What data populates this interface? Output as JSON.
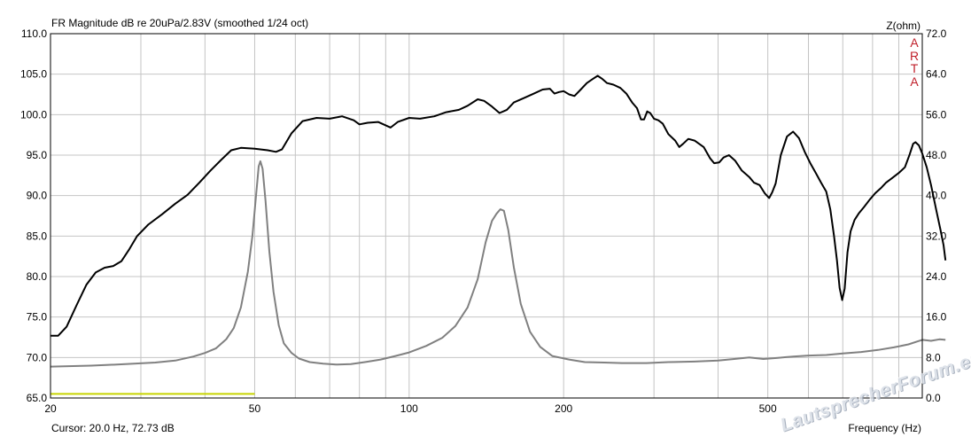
{
  "chart_data": {
    "type": "line",
    "title": "FR Magnitude dB re 20uPa/2.83V (smoothed 1/24 oct)",
    "xlabel": "Frequency (Hz)",
    "ylabel_right": "Z(ohm)",
    "x_scale": "log",
    "xlim": [
      20,
      1000
    ],
    "ylim": [
      65,
      110
    ],
    "y2lim": [
      0,
      72
    ],
    "grid": true,
    "x_ticks": [
      "20",
      "50",
      "100",
      "200",
      "500"
    ],
    "y_ticks": [
      "110.0",
      "105.0",
      "100.0",
      "95.0",
      "90.0",
      "85.0",
      "80.0",
      "75.0",
      "70.0",
      "65.0"
    ],
    "y2_ticks": [
      "72.0",
      "64.0",
      "56.0",
      "48.0",
      "40.0",
      "32.0",
      "24.0",
      "16.0",
      "8.0",
      "0.0"
    ],
    "series": [
      {
        "axis": "left",
        "color": "#000000",
        "points": [
          [
            20,
            72.7
          ],
          [
            20.7,
            72.7
          ],
          [
            21.5,
            73.8
          ],
          [
            22.5,
            76.5
          ],
          [
            23.5,
            79.0
          ],
          [
            24.5,
            80.5
          ],
          [
            25.5,
            81.1
          ],
          [
            26.5,
            81.3
          ],
          [
            27.5,
            81.9
          ],
          [
            28.5,
            83.4
          ],
          [
            29.5,
            85.0
          ],
          [
            31,
            86.4
          ],
          [
            33,
            87.7
          ],
          [
            35,
            89.0
          ],
          [
            37,
            90.1
          ],
          [
            39,
            91.6
          ],
          [
            41,
            93.1
          ],
          [
            43,
            94.4
          ],
          [
            45,
            95.6
          ],
          [
            47,
            95.9
          ],
          [
            50,
            95.8
          ],
          [
            53,
            95.6
          ],
          [
            55,
            95.4
          ],
          [
            56.5,
            95.7
          ],
          [
            59,
            97.7
          ],
          [
            62,
            99.2
          ],
          [
            66,
            99.6
          ],
          [
            70,
            99.5
          ],
          [
            74,
            99.8
          ],
          [
            78,
            99.3
          ],
          [
            80,
            98.8
          ],
          [
            83,
            99.0
          ],
          [
            87,
            99.1
          ],
          [
            92,
            98.4
          ],
          [
            95,
            99.1
          ],
          [
            100,
            99.6
          ],
          [
            105,
            99.5
          ],
          [
            112,
            99.8
          ],
          [
            118,
            100.3
          ],
          [
            125,
            100.6
          ],
          [
            130,
            101.1
          ],
          [
            136,
            101.9
          ],
          [
            140,
            101.7
          ],
          [
            145,
            101.0
          ],
          [
            150,
            100.2
          ],
          [
            155,
            100.6
          ],
          [
            160,
            101.5
          ],
          [
            168,
            102.1
          ],
          [
            175,
            102.6
          ],
          [
            182,
            103.1
          ],
          [
            188,
            103.2
          ],
          [
            192,
            102.6
          ],
          [
            196,
            102.8
          ],
          [
            200,
            102.9
          ],
          [
            205,
            102.5
          ],
          [
            210,
            102.3
          ],
          [
            216,
            103.1
          ],
          [
            222,
            103.9
          ],
          [
            228,
            104.4
          ],
          [
            233,
            104.8
          ],
          [
            238,
            104.4
          ],
          [
            243,
            103.9
          ],
          [
            250,
            103.7
          ],
          [
            258,
            103.3
          ],
          [
            265,
            102.6
          ],
          [
            272,
            101.5
          ],
          [
            278,
            100.8
          ],
          [
            283,
            99.4
          ],
          [
            287,
            99.4
          ],
          [
            291,
            100.4
          ],
          [
            295,
            100.2
          ],
          [
            300,
            99.5
          ],
          [
            306,
            99.3
          ],
          [
            312,
            98.9
          ],
          [
            320,
            97.6
          ],
          [
            330,
            96.8
          ],
          [
            336,
            96.0
          ],
          [
            342,
            96.4
          ],
          [
            350,
            97.0
          ],
          [
            360,
            96.8
          ],
          [
            375,
            96.0
          ],
          [
            386,
            94.6
          ],
          [
            393,
            94.0
          ],
          [
            402,
            94.1
          ],
          [
            410,
            94.7
          ],
          [
            420,
            95.0
          ],
          [
            432,
            94.3
          ],
          [
            445,
            93.1
          ],
          [
            460,
            92.3
          ],
          [
            470,
            91.6
          ],
          [
            482,
            91.3
          ],
          [
            493,
            90.3
          ],
          [
            503,
            89.7
          ],
          [
            510,
            90.4
          ],
          [
            518,
            91.5
          ],
          [
            530,
            95.0
          ],
          [
            545,
            97.3
          ],
          [
            560,
            97.9
          ],
          [
            575,
            97.1
          ],
          [
            590,
            95.4
          ],
          [
            605,
            94.0
          ],
          [
            620,
            92.8
          ],
          [
            635,
            91.6
          ],
          [
            650,
            90.5
          ],
          [
            662,
            88.3
          ],
          [
            673,
            85.0
          ],
          [
            682,
            82.0
          ],
          [
            690,
            78.6
          ],
          [
            698,
            77.1
          ],
          [
            706,
            78.5
          ],
          [
            715,
            83.0
          ],
          [
            725,
            85.6
          ],
          [
            738,
            87.0
          ],
          [
            752,
            87.8
          ],
          [
            770,
            88.6
          ],
          [
            790,
            89.5
          ],
          [
            810,
            90.3
          ],
          [
            830,
            90.9
          ],
          [
            850,
            91.6
          ],
          [
            875,
            92.2
          ],
          [
            900,
            92.8
          ],
          [
            925,
            93.5
          ],
          [
            945,
            95.1
          ],
          [
            960,
            96.4
          ],
          [
            970,
            96.6
          ],
          [
            985,
            96.2
          ],
          [
            1000,
            95.2
          ],
          [
            1020,
            93.5
          ],
          [
            1040,
            91.3
          ],
          [
            1065,
            88.2
          ],
          [
            1085,
            85.8
          ],
          [
            1100,
            83.9
          ],
          [
            1110,
            82.0
          ]
        ]
      },
      {
        "axis": "right",
        "color": "#808080",
        "points": [
          [
            20,
            6.2
          ],
          [
            24,
            6.4
          ],
          [
            28,
            6.7
          ],
          [
            32,
            7.0
          ],
          [
            35,
            7.4
          ],
          [
            38,
            8.2
          ],
          [
            40,
            8.9
          ],
          [
            42,
            9.8
          ],
          [
            44,
            11.6
          ],
          [
            45.5,
            13.8
          ],
          [
            47,
            17.9
          ],
          [
            48.5,
            25.0
          ],
          [
            49.5,
            32.0
          ],
          [
            50.3,
            40.0
          ],
          [
            50.9,
            45.8
          ],
          [
            51.3,
            46.8
          ],
          [
            51.8,
            45.3
          ],
          [
            52.5,
            39.0
          ],
          [
            53.4,
            29.0
          ],
          [
            54.4,
            21.0
          ],
          [
            55.7,
            14.4
          ],
          [
            57,
            10.8
          ],
          [
            59,
            8.9
          ],
          [
            61,
            7.8
          ],
          [
            64,
            7.1
          ],
          [
            68,
            6.8
          ],
          [
            72,
            6.6
          ],
          [
            77,
            6.7
          ],
          [
            82,
            7.1
          ],
          [
            88,
            7.6
          ],
          [
            94,
            8.3
          ],
          [
            100,
            9.0
          ],
          [
            108,
            10.3
          ],
          [
            116,
            11.9
          ],
          [
            123,
            14.2
          ],
          [
            130,
            17.9
          ],
          [
            136,
            23.5
          ],
          [
            141,
            30.8
          ],
          [
            145,
            35.0
          ],
          [
            148,
            36.4
          ],
          [
            150.5,
            37.3
          ],
          [
            153,
            37.0
          ],
          [
            156,
            33.2
          ],
          [
            160,
            25.8
          ],
          [
            165,
            18.6
          ],
          [
            172,
            13.1
          ],
          [
            180,
            10.1
          ],
          [
            190,
            8.3
          ],
          [
            205,
            7.6
          ],
          [
            220,
            7.1
          ],
          [
            240,
            7.0
          ],
          [
            260,
            6.9
          ],
          [
            290,
            6.9
          ],
          [
            320,
            7.1
          ],
          [
            360,
            7.2
          ],
          [
            400,
            7.4
          ],
          [
            430,
            7.7
          ],
          [
            460,
            8.0
          ],
          [
            490,
            7.7
          ],
          [
            520,
            7.9
          ],
          [
            560,
            8.2
          ],
          [
            600,
            8.4
          ],
          [
            650,
            8.5
          ],
          [
            700,
            8.8
          ],
          [
            760,
            9.1
          ],
          [
            820,
            9.5
          ],
          [
            880,
            10.0
          ],
          [
            940,
            10.6
          ],
          [
            980,
            11.2
          ],
          [
            1000,
            11.5
          ],
          [
            1040,
            11.3
          ],
          [
            1080,
            11.6
          ],
          [
            1110,
            11.5
          ]
        ]
      },
      {
        "axis": "left",
        "color": "#c8d400",
        "points": [
          [
            20,
            65.5
          ],
          [
            50,
            65.5
          ]
        ]
      }
    ]
  },
  "ui": {
    "title": "FR Magnitude dB re 20uPa/2.83V (smoothed 1/24 oct)",
    "right_axis_label": "Z(ohm)",
    "arta_label": [
      "A",
      "R",
      "T",
      "A"
    ],
    "cursor_readout": "Cursor: 20.0 Hz, 72.73 dB",
    "x_axis_label": "Frequency (Hz)",
    "watermark": "LautsprecherForum.eu"
  }
}
